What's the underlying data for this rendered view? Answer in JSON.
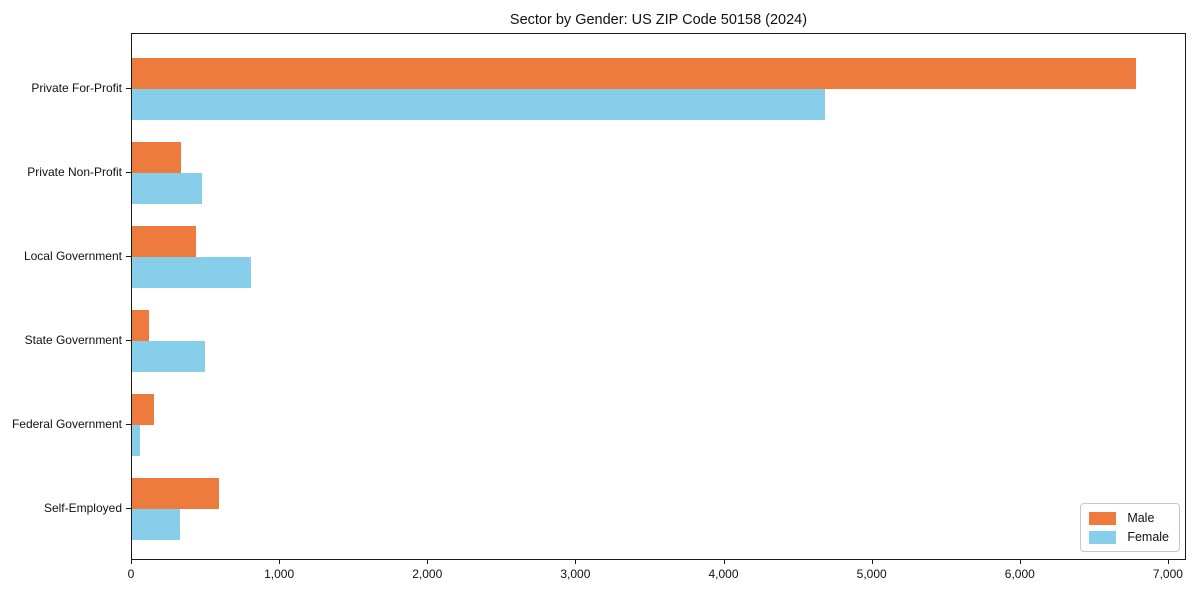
{
  "chart_data": {
    "type": "bar",
    "orientation": "horizontal",
    "title": "Sector by Gender: US ZIP Code 50158 (2024)",
    "xlabel": "",
    "ylabel": "",
    "categories": [
      "Private For-Profit",
      "Private Non-Profit",
      "Local Government",
      "State Government",
      "Federal Government",
      "Self-Employed"
    ],
    "series": [
      {
        "name": "Male",
        "color": "#ec7b3d",
        "values": [
          6780,
          330,
          430,
          115,
          150,
          590
        ]
      },
      {
        "name": "Female",
        "color": "#87ceeb",
        "values": [
          4680,
          470,
          800,
          490,
          55,
          325
        ]
      }
    ],
    "xlim": [
      0,
      7122
    ],
    "x_ticks": [
      0,
      1000,
      2000,
      3000,
      4000,
      5000,
      6000,
      7000
    ],
    "x_tick_labels": [
      "0",
      "1,000",
      "2,000",
      "3,000",
      "4,000",
      "5,000",
      "6,000",
      "7,000"
    ],
    "grid": false,
    "legend": {
      "position": "lower right",
      "entries": [
        "Male",
        "Female"
      ]
    },
    "colors": {
      "axis_spine": "#1a1a1a",
      "background": "#ffffff",
      "legend_border": "#c9c9c9"
    }
  }
}
